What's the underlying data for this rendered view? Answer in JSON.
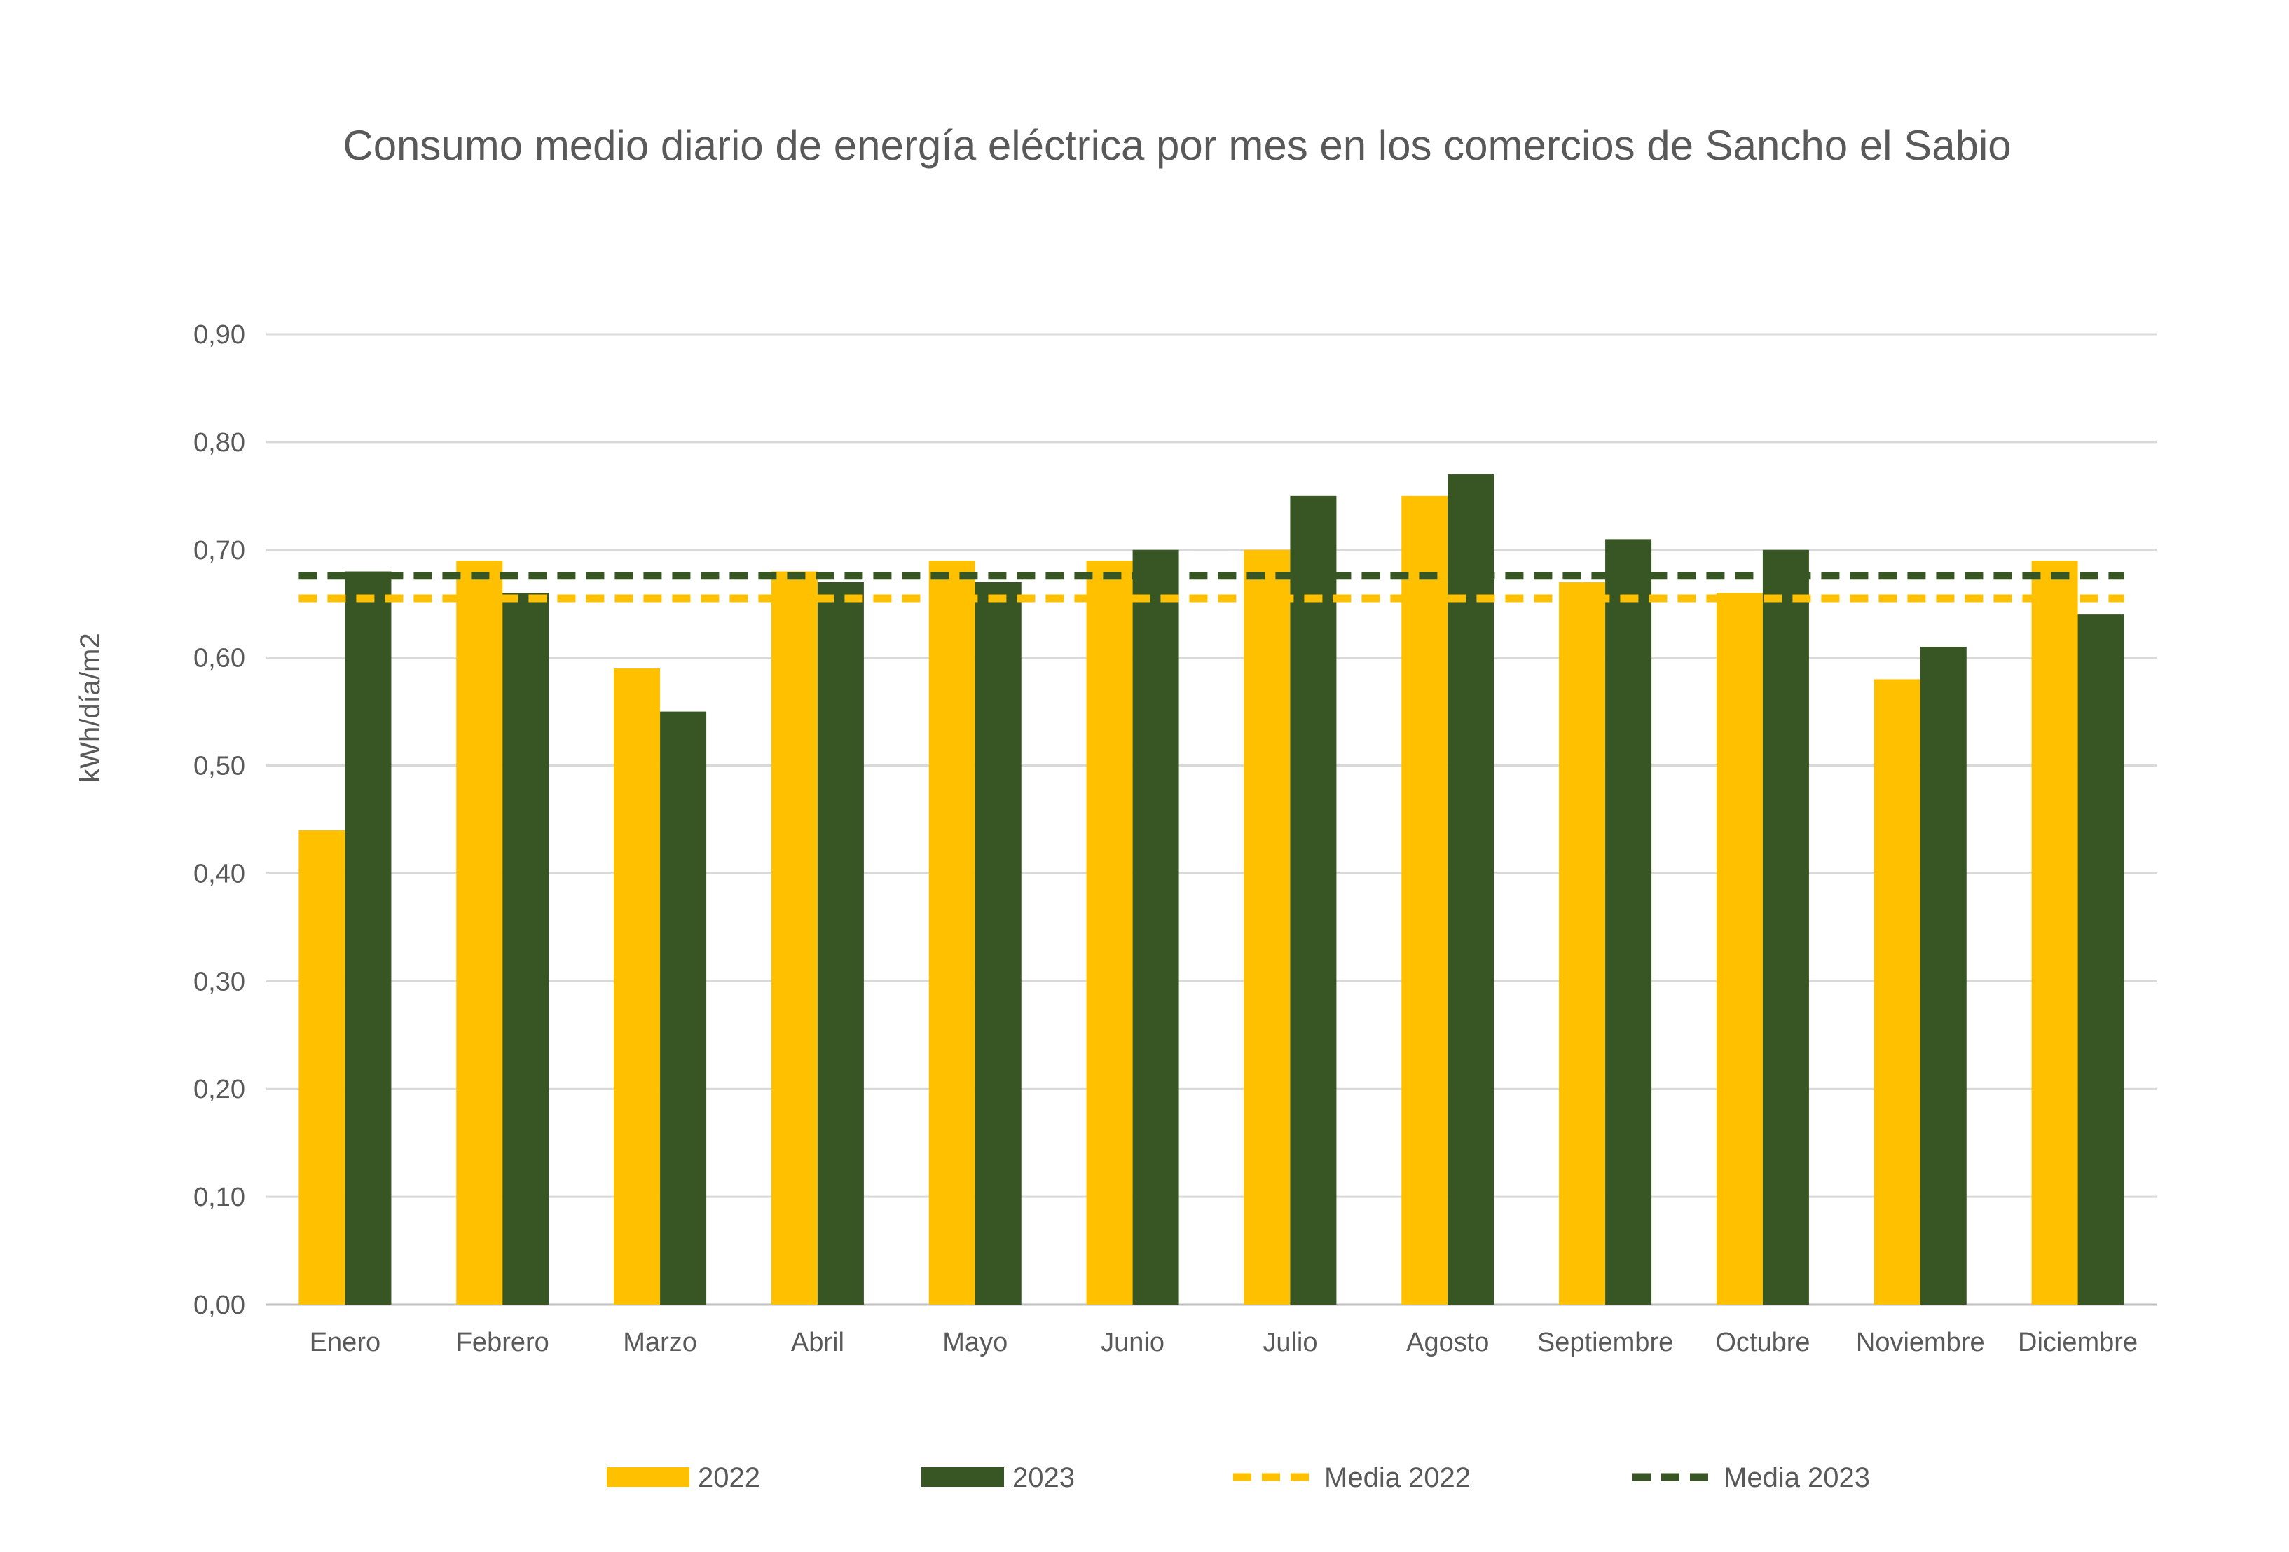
{
  "chart_data": {
    "type": "bar",
    "title": "Consumo medio diario de energía eléctrica por mes en los comercios de Sancho el Sabio",
    "xlabel": "",
    "ylabel": "kWh/día/m2",
    "ylim": [
      0,
      0.9
    ],
    "ytick_values": [
      0,
      0.1,
      0.2,
      0.3,
      0.4,
      0.5,
      0.6,
      0.7,
      0.8,
      0.9
    ],
    "ytick_labels": [
      "0,00",
      "0,10",
      "0,20",
      "0,30",
      "0,40",
      "0,50",
      "0,60",
      "0,70",
      "0,80",
      "0,90"
    ],
    "grid": true,
    "legend_position": "bottom",
    "categories": [
      "Enero",
      "Febrero",
      "Marzo",
      "Abril",
      "Mayo",
      "Junio",
      "Julio",
      "Agosto",
      "Septiembre",
      "Octubre",
      "Noviembre",
      "Diciembre"
    ],
    "series": [
      {
        "name": "2022",
        "type": "bar",
        "color": "#FFC000",
        "values": [
          0.44,
          0.69,
          0.59,
          0.68,
          0.69,
          0.69,
          0.7,
          0.75,
          0.67,
          0.66,
          0.58,
          0.69
        ]
      },
      {
        "name": "2023",
        "type": "bar",
        "color": "#375623",
        "values": [
          0.68,
          0.66,
          0.55,
          0.67,
          0.67,
          0.7,
          0.75,
          0.77,
          0.71,
          0.7,
          0.61,
          0.64
        ]
      }
    ],
    "reference_lines": [
      {
        "name": "Media 2022",
        "value": 0.655,
        "color": "#FFC000",
        "style": "dashed"
      },
      {
        "name": "Media 2023",
        "value": 0.676,
        "color": "#375623",
        "style": "dashed"
      }
    ],
    "colors": {
      "gridline": "#D9D9D9",
      "axis": "#BFBFBF",
      "text": "#595959"
    }
  }
}
